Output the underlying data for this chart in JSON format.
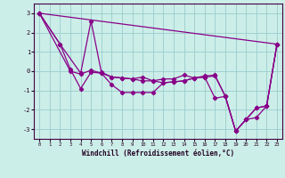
{
  "xlabel": "Windchill (Refroidissement éolien,°C)",
  "background_color": "#cceee8",
  "grid_color": "#99cccc",
  "line_color": "#880088",
  "xlim": [
    -0.5,
    23.5
  ],
  "ylim": [
    -3.5,
    3.5
  ],
  "yticks": [
    -3,
    -2,
    -1,
    0,
    1,
    2,
    3
  ],
  "xticks": [
    0,
    1,
    2,
    3,
    4,
    5,
    6,
    7,
    8,
    9,
    10,
    11,
    12,
    13,
    14,
    15,
    16,
    17,
    18,
    19,
    20,
    21,
    22,
    23
  ],
  "series": [
    [
      0,
      3.0,
      23,
      1.4
    ],
    [
      0,
      3.0,
      2,
      1.4,
      4,
      -0.1,
      5,
      2.6,
      6,
      -0.05,
      7,
      -0.3,
      8,
      -0.35,
      9,
      -0.4,
      10,
      -0.3,
      11,
      -0.5,
      12,
      -0.4,
      13,
      -0.4,
      14,
      -0.2,
      15,
      -0.35,
      16,
      -0.25,
      17,
      -0.2,
      18,
      -1.3,
      19,
      -3.1,
      20,
      -2.5,
      21,
      -1.9,
      22,
      -1.8,
      23,
      1.4
    ],
    [
      0,
      3.0,
      2,
      1.4,
      3,
      0.1,
      4,
      -0.9,
      5,
      -0.05,
      6,
      -0.1,
      7,
      -0.7,
      8,
      -1.1,
      9,
      -1.1,
      10,
      -1.1,
      11,
      -1.1,
      12,
      -0.6,
      13,
      -0.55,
      14,
      -0.5,
      15,
      -0.35,
      16,
      -0.3,
      17,
      -0.25,
      18,
      -1.3,
      19,
      -3.1,
      20,
      -2.5,
      21,
      -1.9,
      22,
      -1.8,
      23,
      1.4
    ],
    [
      0,
      3.0,
      3,
      0.0,
      4,
      -0.15,
      5,
      0.05,
      6,
      -0.1,
      7,
      -0.3,
      8,
      -0.35,
      9,
      -0.4,
      10,
      -0.5,
      11,
      -0.5,
      12,
      -0.6,
      13,
      -0.55,
      14,
      -0.5,
      15,
      -0.35,
      16,
      -0.3,
      17,
      -1.4,
      18,
      -1.3,
      19,
      -3.1,
      20,
      -2.5,
      21,
      -2.4,
      22,
      -1.8,
      23,
      1.4
    ]
  ],
  "line1_x": [
    0,
    23
  ],
  "line1_y": [
    3.0,
    1.4
  ],
  "line2_x": [
    0,
    2,
    4,
    5,
    6,
    7,
    8,
    9,
    10,
    11,
    12,
    13,
    14,
    15,
    16,
    17,
    18,
    19,
    20,
    21,
    22,
    23
  ],
  "line2_y": [
    3.0,
    1.4,
    -0.1,
    2.6,
    -0.05,
    -0.3,
    -0.35,
    -0.4,
    -0.3,
    -0.5,
    -0.4,
    -0.4,
    -0.2,
    -0.35,
    -0.25,
    -0.2,
    -1.3,
    -3.1,
    -2.5,
    -1.9,
    -1.8,
    1.4
  ],
  "line3_x": [
    0,
    2,
    3,
    4,
    5,
    6,
    7,
    8,
    9,
    10,
    11,
    12,
    13,
    14,
    15,
    16,
    17,
    18,
    19,
    20,
    21,
    22,
    23
  ],
  "line3_y": [
    3.0,
    1.4,
    0.1,
    -0.9,
    -0.05,
    -0.1,
    -0.7,
    -1.1,
    -1.1,
    -1.1,
    -1.1,
    -0.6,
    -0.55,
    -0.5,
    -0.35,
    -0.3,
    -0.25,
    -1.3,
    -3.1,
    -2.5,
    -1.9,
    -1.8,
    1.4
  ],
  "line4_x": [
    0,
    3,
    4,
    5,
    6,
    7,
    8,
    9,
    10,
    11,
    12,
    13,
    14,
    15,
    16,
    17,
    18,
    19,
    20,
    21,
    22,
    23
  ],
  "line4_y": [
    3.0,
    0.0,
    -0.15,
    0.05,
    -0.1,
    -0.3,
    -0.35,
    -0.4,
    -0.5,
    -0.5,
    -0.6,
    -0.55,
    -0.5,
    -0.35,
    -0.3,
    -1.4,
    -1.3,
    -3.1,
    -2.5,
    -2.4,
    -1.8,
    1.4
  ]
}
